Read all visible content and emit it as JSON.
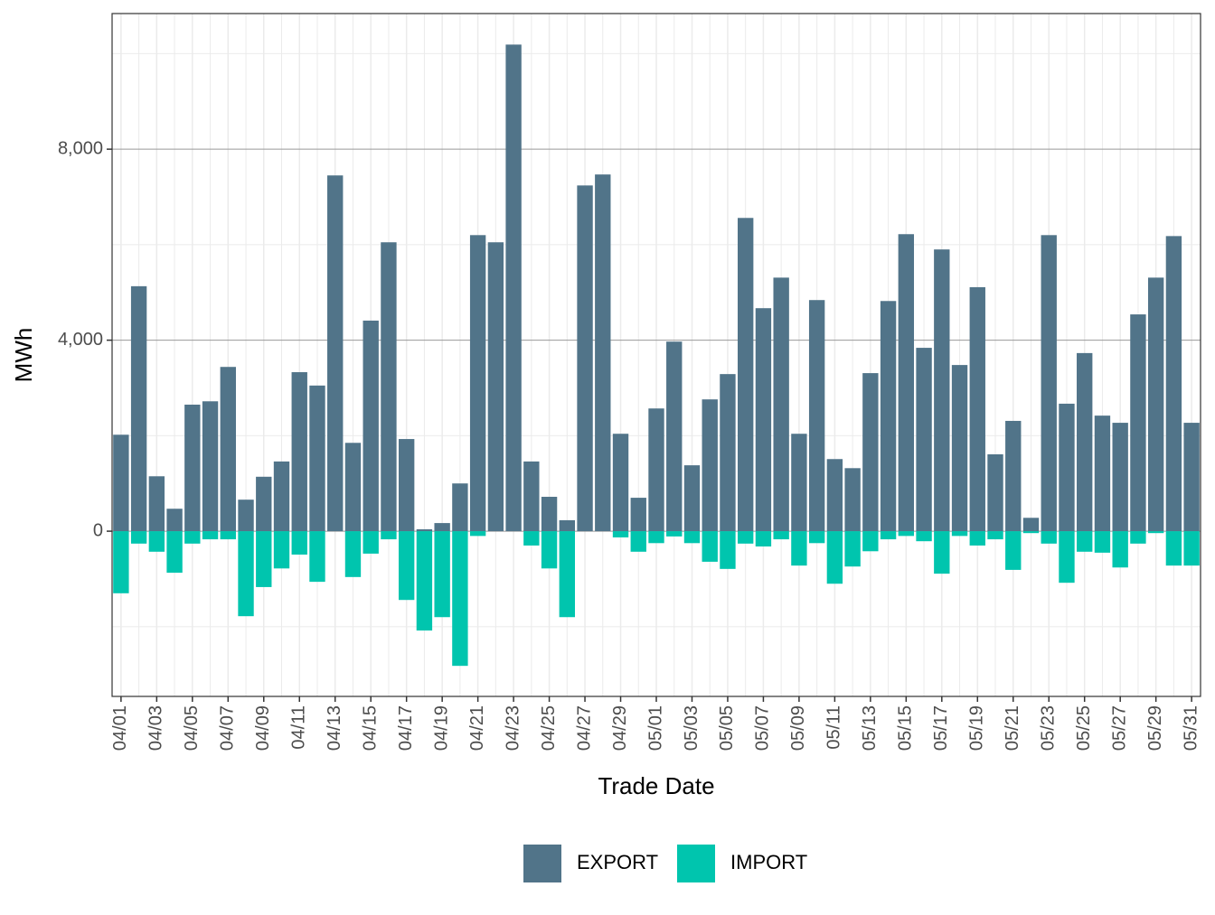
{
  "chart_data": {
    "type": "bar",
    "x_label": "Trade Date",
    "y_label": "MWh",
    "categories": [
      "04/01",
      null,
      "04/03",
      null,
      "04/05",
      null,
      "04/07",
      null,
      "04/09",
      null,
      "04/11",
      null,
      "04/13",
      null,
      "04/15",
      null,
      "04/17",
      null,
      "04/19",
      null,
      "04/21",
      null,
      "04/23",
      null,
      "04/25",
      null,
      "04/27",
      null,
      "04/29",
      null,
      "05/01",
      null,
      "05/03",
      null,
      "05/05",
      null,
      "05/07",
      null,
      "05/09",
      null,
      "05/11",
      null,
      "05/13",
      null,
      "05/15",
      null,
      "05/17",
      null,
      "05/19",
      null,
      "05/21",
      null,
      "05/23",
      null,
      "05/25",
      null,
      "05/27",
      null,
      "05/29",
      null,
      "05/31"
    ],
    "series": [
      {
        "name": "EXPORT",
        "color": "#517489",
        "values": [
          2020,
          5130,
          1150,
          470,
          2650,
          2720,
          3440,
          660,
          1140,
          1460,
          3330,
          3050,
          7450,
          1850,
          4410,
          6050,
          1930,
          40,
          170,
          1000,
          6200,
          6050,
          10190,
          1460,
          720,
          230,
          7240,
          7470,
          2040,
          700,
          2570,
          3970,
          1380,
          2760,
          3290,
          6560,
          4670,
          5310,
          2040,
          4840,
          1510,
          1320,
          3310,
          4820,
          6220,
          3840,
          5900,
          3480,
          5110,
          1610,
          2310,
          280,
          6200,
          2670,
          3730,
          2420,
          2270,
          4540,
          5310,
          6180,
          2270
        ]
      },
      {
        "name": "IMPORT",
        "color": "#00C5AE",
        "values": [
          -1300,
          -260,
          -430,
          -870,
          -260,
          -170,
          -170,
          -1780,
          -1170,
          -780,
          -490,
          -1060,
          0,
          -960,
          -470,
          -170,
          -1440,
          -2080,
          -1800,
          -2820,
          -100,
          0,
          0,
          -300,
          -780,
          -1800,
          0,
          0,
          -130,
          -430,
          -250,
          -110,
          -250,
          -640,
          -790,
          -260,
          -320,
          -170,
          -720,
          -250,
          -1100,
          -740,
          -420,
          -170,
          -100,
          -210,
          -890,
          -100,
          -300,
          -170,
          -810,
          -40,
          -260,
          -1080,
          -430,
          -450,
          -760,
          -260,
          -40,
          -720,
          -720
        ]
      }
    ],
    "ylim": [
      -3460,
      10840
    ],
    "yticks": [
      0,
      {
        "value": 4000,
        "label": "4,000"
      },
      {
        "value": 8000,
        "label": "8,000"
      }
    ],
    "grid": true,
    "legend": "bottom"
  }
}
